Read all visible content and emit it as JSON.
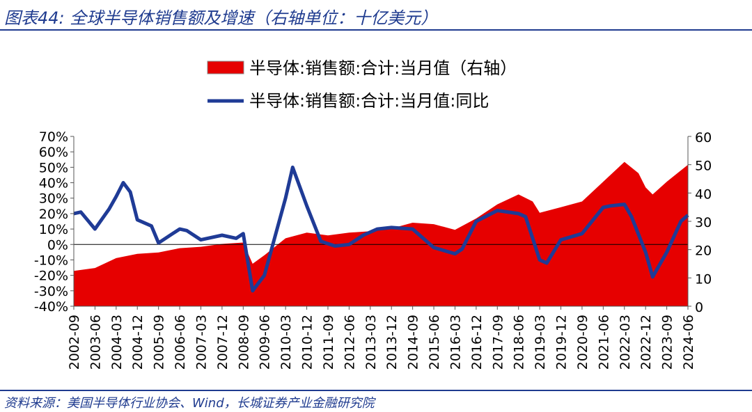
{
  "title": "图表44:  全球半导体销售额及增速（右轴单位：十亿美元）",
  "source": "资料来源：美国半导体行业协会、Wind，长城证券产业金融研究院",
  "colors": {
    "area": "#e60000",
    "line": "#1f3b96",
    "rule": "#1f3b8f"
  },
  "chart_data": {
    "type": "area+line",
    "title": "",
    "legend": [
      {
        "name": "半导体:销售额:合计:当月值（右轴）",
        "type": "area",
        "axis": "right"
      },
      {
        "name": "半导体:销售额:合计:当月值:同比",
        "type": "line",
        "axis": "left"
      }
    ],
    "x_tick_labels": [
      "2002-09",
      "2003-06",
      "2004-03",
      "2004-12",
      "2005-09",
      "2006-06",
      "2007-03",
      "2007-12",
      "2008-09",
      "2009-06",
      "2010-03",
      "2010-12",
      "2011-09",
      "2012-06",
      "2013-03",
      "2013-12",
      "2014-09",
      "2015-06",
      "2016-03",
      "2016-12",
      "2017-09",
      "2018-06",
      "2019-03",
      "2019-12",
      "2020-09",
      "2021-06",
      "2022-03",
      "2022-12",
      "2023-09",
      "2024-06"
    ],
    "x_range": [
      "2002-09",
      "2024-06"
    ],
    "left_axis": {
      "ticks": [
        "-40%",
        "-30%",
        "-20%",
        "-10%",
        "0%",
        "10%",
        "20%",
        "30%",
        "40%",
        "50%",
        "60%",
        "70%"
      ],
      "ylim": [
        -40,
        70
      ],
      "unit": "%"
    },
    "right_axis": {
      "ticks": [
        "0",
        "10",
        "20",
        "30",
        "40",
        "50",
        "60"
      ],
      "ylim": [
        0,
        60
      ]
    },
    "sales": [
      [
        "2002-09",
        12.5
      ],
      [
        "2003-06",
        13.5
      ],
      [
        "2004-03",
        17
      ],
      [
        "2004-12",
        18.5
      ],
      [
        "2005-09",
        19
      ],
      [
        "2006-06",
        20.5
      ],
      [
        "2007-03",
        21
      ],
      [
        "2007-12",
        22
      ],
      [
        "2008-09",
        22.5
      ],
      [
        "2009-01",
        15
      ],
      [
        "2009-06",
        18
      ],
      [
        "2010-03",
        24
      ],
      [
        "2010-12",
        26
      ],
      [
        "2011-09",
        25
      ],
      [
        "2012-06",
        26
      ],
      [
        "2013-03",
        26.5
      ],
      [
        "2013-12",
        27.5
      ],
      [
        "2014-09",
        29.5
      ],
      [
        "2015-06",
        29
      ],
      [
        "2016-03",
        27
      ],
      [
        "2016-12",
        31
      ],
      [
        "2017-09",
        36
      ],
      [
        "2018-06",
        39.5
      ],
      [
        "2018-12",
        37
      ],
      [
        "2019-03",
        33
      ],
      [
        "2019-12",
        35
      ],
      [
        "2020-09",
        37
      ],
      [
        "2021-06",
        44
      ],
      [
        "2022-03",
        51
      ],
      [
        "2022-09",
        47
      ],
      [
        "2022-12",
        42
      ],
      [
        "2023-03",
        39.5
      ],
      [
        "2023-09",
        44
      ],
      [
        "2024-06",
        50
      ]
    ],
    "yoy": [
      [
        "2002-09",
        20
      ],
      [
        "2002-12",
        21
      ],
      [
        "2003-06",
        10
      ],
      [
        "2003-12",
        23
      ],
      [
        "2004-03",
        31
      ],
      [
        "2004-06",
        40
      ],
      [
        "2004-09",
        34
      ],
      [
        "2004-12",
        16
      ],
      [
        "2005-06",
        12
      ],
      [
        "2005-09",
        1
      ],
      [
        "2006-03",
        7
      ],
      [
        "2006-06",
        10
      ],
      [
        "2006-09",
        9
      ],
      [
        "2007-03",
        3
      ],
      [
        "2007-12",
        6
      ],
      [
        "2008-06",
        4
      ],
      [
        "2008-09",
        7
      ],
      [
        "2009-01",
        -30
      ],
      [
        "2009-06",
        -20
      ],
      [
        "2010-03",
        30
      ],
      [
        "2010-06",
        50
      ],
      [
        "2010-12",
        25
      ],
      [
        "2011-06",
        2
      ],
      [
        "2011-12",
        -1
      ],
      [
        "2012-06",
        0
      ],
      [
        "2012-12",
        6
      ],
      [
        "2013-03",
        8
      ],
      [
        "2013-06",
        10
      ],
      [
        "2013-12",
        11
      ],
      [
        "2014-09",
        10
      ],
      [
        "2015-06",
        -2
      ],
      [
        "2016-03",
        -6
      ],
      [
        "2016-06",
        -3
      ],
      [
        "2016-12",
        15
      ],
      [
        "2017-09",
        22
      ],
      [
        "2018-06",
        20
      ],
      [
        "2018-09",
        18
      ],
      [
        "2019-03",
        -10
      ],
      [
        "2019-06",
        -12
      ],
      [
        "2019-12",
        3
      ],
      [
        "2020-09",
        7
      ],
      [
        "2021-06",
        24
      ],
      [
        "2021-09",
        25
      ],
      [
        "2022-03",
        26
      ],
      [
        "2022-06",
        18
      ],
      [
        "2022-12",
        -5
      ],
      [
        "2023-03",
        -21
      ],
      [
        "2023-09",
        -5
      ],
      [
        "2024-03",
        15
      ],
      [
        "2024-06",
        19
      ]
    ]
  }
}
